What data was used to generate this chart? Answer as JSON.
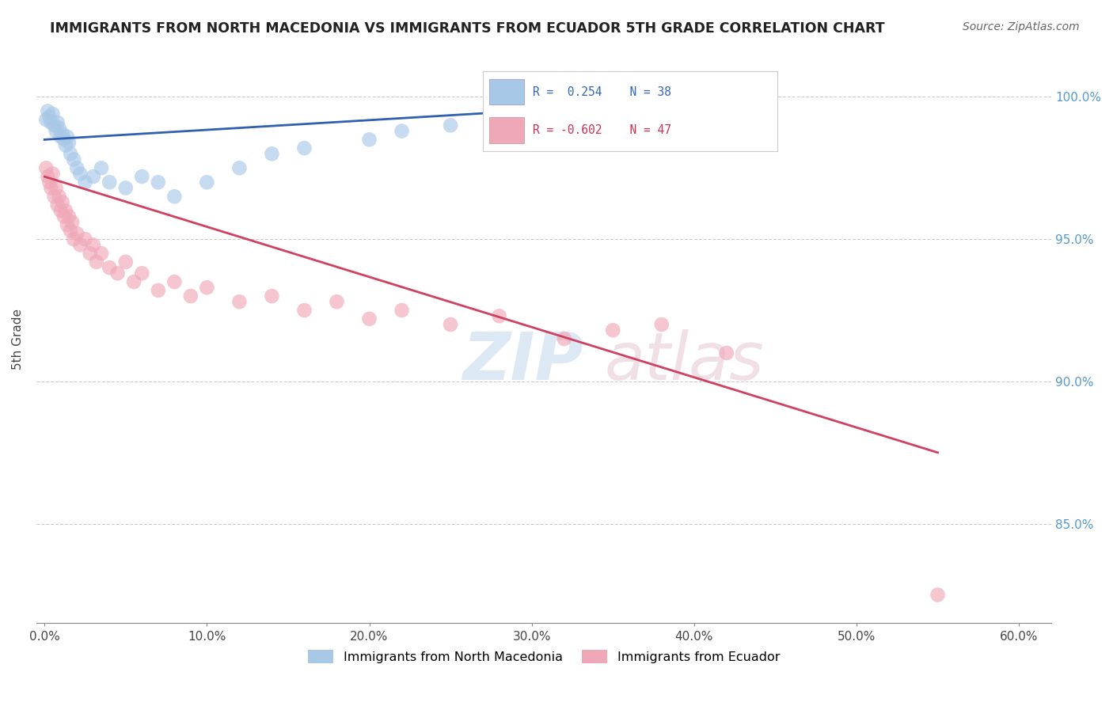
{
  "title": "IMMIGRANTS FROM NORTH MACEDONIA VS IMMIGRANTS FROM ECUADOR 5TH GRADE CORRELATION CHART",
  "source": "Source: ZipAtlas.com",
  "ylabel": "5th Grade",
  "xlabel_ticks": [
    "0.0%",
    "10.0%",
    "20.0%",
    "30.0%",
    "40.0%",
    "50.0%",
    "60.0%"
  ],
  "xlabel_values": [
    0,
    10,
    20,
    30,
    40,
    50,
    60
  ],
  "ylim": [
    81.5,
    101.5
  ],
  "xlim": [
    -0.5,
    62
  ],
  "legend_labels": [
    "Immigrants from North Macedonia",
    "Immigrants from Ecuador"
  ],
  "blue_color": "#a8c8e8",
  "pink_color": "#f0a8b8",
  "blue_line_color": "#3060b0",
  "pink_line_color": "#d04060",
  "blue_scatter_x": [
    0.1,
    0.2,
    0.3,
    0.4,
    0.5,
    0.6,
    0.7,
    0.8,
    0.9,
    1.0,
    1.1,
    1.2,
    1.3,
    1.4,
    1.5,
    1.6,
    1.8,
    2.0,
    2.2,
    2.5,
    3.0,
    3.5,
    4.0,
    5.0,
    6.0,
    7.0,
    8.0,
    10.0,
    12.0,
    14.0,
    16.0,
    20.0,
    22.0,
    25.0,
    28.0,
    32.0,
    35.0,
    38.0
  ],
  "blue_scatter_y": [
    99.2,
    99.5,
    99.3,
    99.1,
    99.4,
    99.0,
    98.8,
    99.1,
    98.9,
    98.6,
    98.7,
    98.5,
    98.3,
    98.6,
    98.4,
    98.0,
    97.8,
    97.5,
    97.3,
    97.0,
    97.2,
    97.5,
    97.0,
    96.8,
    97.2,
    97.0,
    96.5,
    97.0,
    97.5,
    98.0,
    98.2,
    98.5,
    98.8,
    99.0,
    98.6,
    99.2,
    99.0,
    99.4
  ],
  "pink_scatter_x": [
    0.1,
    0.2,
    0.3,
    0.4,
    0.5,
    0.6,
    0.7,
    0.8,
    0.9,
    1.0,
    1.1,
    1.2,
    1.3,
    1.4,
    1.5,
    1.6,
    1.7,
    1.8,
    2.0,
    2.2,
    2.5,
    2.8,
    3.0,
    3.2,
    3.5,
    4.0,
    4.5,
    5.0,
    5.5,
    6.0,
    7.0,
    8.0,
    9.0,
    10.0,
    12.0,
    14.0,
    16.0,
    18.0,
    20.0,
    22.0,
    25.0,
    28.0,
    32.0,
    35.0,
    38.0,
    42.0,
    55.0
  ],
  "pink_scatter_y": [
    97.5,
    97.2,
    97.0,
    96.8,
    97.3,
    96.5,
    96.8,
    96.2,
    96.5,
    96.0,
    96.3,
    95.8,
    96.0,
    95.5,
    95.8,
    95.3,
    95.6,
    95.0,
    95.2,
    94.8,
    95.0,
    94.5,
    94.8,
    94.2,
    94.5,
    94.0,
    93.8,
    94.2,
    93.5,
    93.8,
    93.2,
    93.5,
    93.0,
    93.3,
    92.8,
    93.0,
    92.5,
    92.8,
    92.2,
    92.5,
    92.0,
    92.3,
    91.5,
    91.8,
    92.0,
    91.0,
    82.5
  ],
  "blue_trend_x": [
    0,
    38
  ],
  "blue_trend_y": [
    98.5,
    99.8
  ],
  "pink_trend_x": [
    0,
    55
  ],
  "pink_trend_y": [
    97.2,
    87.5
  ],
  "right_yticks": [
    85.0,
    90.0,
    95.0,
    100.0
  ],
  "right_ytick_labels": [
    "85.0%",
    "90.0%",
    "95.0%",
    "100.0%"
  ],
  "right_ytick_color": "#5599cc"
}
